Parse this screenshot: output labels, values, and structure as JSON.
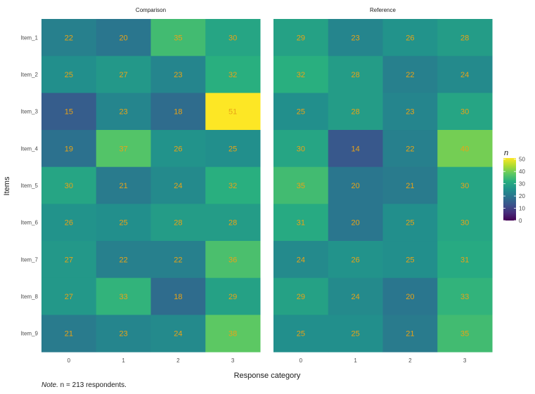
{
  "chart_data": {
    "type": "heatmap",
    "facets": [
      "Comparison",
      "Reference"
    ],
    "y_categories": [
      "Item_1",
      "Item_2",
      "Item_3",
      "Item_4",
      "Item_5",
      "Item_6",
      "Item_7",
      "Item_8",
      "Item_9"
    ],
    "x_categories": [
      "0",
      "1",
      "2",
      "3"
    ],
    "values": {
      "Comparison": [
        [
          22,
          20,
          35,
          30
        ],
        [
          25,
          27,
          23,
          32
        ],
        [
          15,
          23,
          18,
          51
        ],
        [
          19,
          37,
          26,
          25
        ],
        [
          30,
          21,
          24,
          32
        ],
        [
          26,
          25,
          28,
          28
        ],
        [
          27,
          22,
          22,
          36
        ],
        [
          27,
          33,
          18,
          29
        ],
        [
          21,
          23,
          24,
          38
        ]
      ],
      "Reference": [
        [
          29,
          23,
          26,
          28
        ],
        [
          32,
          28,
          22,
          24
        ],
        [
          25,
          28,
          23,
          30
        ],
        [
          30,
          14,
          22,
          40
        ],
        [
          35,
          20,
          21,
          30
        ],
        [
          31,
          20,
          25,
          30
        ],
        [
          24,
          26,
          25,
          31
        ],
        [
          29,
          24,
          20,
          33
        ],
        [
          25,
          25,
          21,
          35
        ]
      ]
    },
    "xlabel": "Response category",
    "ylabel": "Items",
    "legend": {
      "title": "n",
      "ticks": [
        0,
        10,
        20,
        30,
        40,
        50
      ],
      "range": [
        0,
        51
      ],
      "placement": "right"
    },
    "colormap": "viridis",
    "label_color": "#E8A317",
    "grid": false
  },
  "note": {
    "prefix": "Note.",
    "text": " n = 213 respondents."
  }
}
